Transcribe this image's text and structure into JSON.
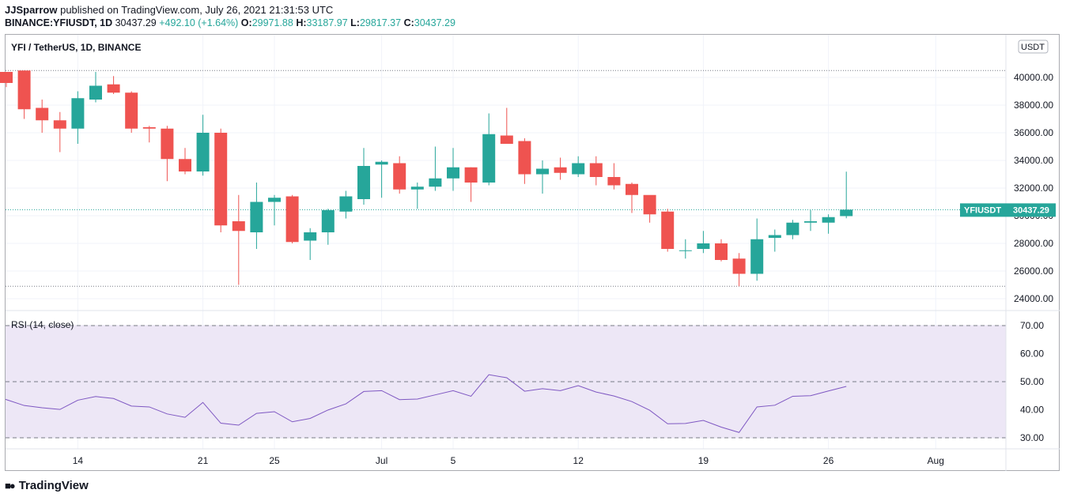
{
  "header": {
    "author": "JJSparrow",
    "published": " published on TradingView.com, July 26, 2021 21:31:53 UTC",
    "symbol": "BINANCE:YFIUSDT, 1D",
    "last": "30437.29",
    "change": "+492.10 (+1.64%)",
    "o_label": "O:",
    "o_val": "29971.88",
    "h_label": "H:",
    "h_val": "33187.97",
    "l_label": "L:",
    "l_val": "29817.37",
    "c_label": "C:",
    "c_val": "30437.29"
  },
  "chart_title": "YFI / TetherUS, 1D, BINANCE",
  "currency_badge": "USDT",
  "price_badge": {
    "label": "YFIUSDT",
    "value": "30437.29"
  },
  "rsi_label": "RSI (14, close)",
  "logo_text": "TradingView",
  "colors": {
    "up": "#26a69a",
    "down": "#ef5350",
    "rsi_line": "#7e57c2",
    "rsi_band": "#ede7f6"
  },
  "chart_data": [
    {
      "type": "candlestick",
      "title": "YFI / TetherUS, 1D, BINANCE",
      "y_ticks": [
        "24000.00",
        "26000.00",
        "28000.00",
        "30000.00",
        "32000.00",
        "34000.00",
        "36000.00",
        "38000.00",
        "40000.00"
      ],
      "x_ticks": [
        "14",
        "21",
        "25",
        "Jul",
        "5",
        "12",
        "19",
        "26",
        "Aug"
      ],
      "ohlc": [
        [
          40400,
          40400,
          39300,
          39600
        ],
        [
          40500,
          40500,
          37000,
          37700
        ],
        [
          37800,
          38400,
          36000,
          36900
        ],
        [
          36900,
          37500,
          34600,
          36300
        ],
        [
          36300,
          39000,
          35200,
          38500
        ],
        [
          38400,
          40400,
          38200,
          39400
        ],
        [
          39500,
          40100,
          38800,
          38900
        ],
        [
          38900,
          39000,
          36000,
          36300
        ],
        [
          36400,
          36500,
          35300,
          36300
        ],
        [
          36300,
          36500,
          32500,
          34100
        ],
        [
          34100,
          34900,
          33000,
          33200
        ],
        [
          33200,
          37300,
          32900,
          36000
        ],
        [
          36000,
          36300,
          28800,
          29300
        ],
        [
          29600,
          31500,
          25000,
          28900
        ],
        [
          28800,
          32400,
          27600,
          31000
        ],
        [
          31000,
          31500,
          29300,
          31300
        ],
        [
          31400,
          31500,
          28000,
          28100
        ],
        [
          28200,
          29100,
          26800,
          28800
        ],
        [
          28800,
          30500,
          27900,
          30400
        ],
        [
          30300,
          31800,
          29800,
          31400
        ],
        [
          31200,
          34900,
          30800,
          33600
        ],
        [
          33700,
          34000,
          31300,
          33900
        ],
        [
          33800,
          34300,
          31600,
          31900
        ],
        [
          31900,
          32400,
          30500,
          32100
        ],
        [
          32100,
          35000,
          31800,
          32700
        ],
        [
          32700,
          34900,
          31800,
          33500
        ],
        [
          33500,
          33500,
          31000,
          32400
        ],
        [
          32400,
          37400,
          32200,
          35900
        ],
        [
          35800,
          37800,
          35300,
          35200
        ],
        [
          35400,
          35600,
          32300,
          33000
        ],
        [
          33000,
          34000,
          31600,
          33400
        ],
        [
          33500,
          34200,
          32600,
          33100
        ],
        [
          33000,
          34300,
          32800,
          33800
        ],
        [
          33800,
          34300,
          32200,
          32800
        ],
        [
          32800,
          33800,
          31900,
          32200
        ],
        [
          32300,
          32400,
          30200,
          31500
        ],
        [
          31500,
          31400,
          29500,
          30100
        ],
        [
          30300,
          30500,
          27400,
          27600
        ],
        [
          27500,
          28300,
          26900,
          27500
        ],
        [
          27600,
          28900,
          27300,
          28000
        ],
        [
          28000,
          28300,
          26700,
          26800
        ],
        [
          26900,
          27300,
          24900,
          25800
        ],
        [
          25800,
          29800,
          25300,
          28300
        ],
        [
          28400,
          29000,
          27400,
          28600
        ],
        [
          28600,
          29700,
          28300,
          29500
        ],
        [
          29500,
          30400,
          28900,
          29600
        ],
        [
          29500,
          30100,
          28700,
          29900
        ],
        [
          29972,
          33188,
          29817,
          30437
        ]
      ],
      "last_price": 30437.29
    },
    {
      "type": "line",
      "title": "RSI (14, close)",
      "y_ticks": [
        "30.00",
        "40.00",
        "50.00",
        "60.00",
        "70.00"
      ],
      "levels": [
        30,
        50,
        70
      ],
      "series": [
        {
          "values": [
            43.7,
            41.5,
            40.7,
            40.1,
            43.4,
            44.7,
            44.0,
            41.3,
            41.0,
            38.5,
            37.3,
            42.6,
            35.2,
            34.5,
            38.7,
            39.3,
            35.7,
            36.9,
            39.9,
            42.1,
            46.5,
            46.8,
            43.6,
            43.8,
            45.3,
            46.8,
            44.8,
            52.5,
            51.4,
            46.6,
            47.5,
            46.8,
            48.6,
            46.3,
            44.9,
            42.9,
            39.8,
            35.0,
            35.1,
            36.2,
            33.8,
            31.9,
            41.0,
            41.6,
            44.8,
            45.0,
            46.7,
            48.3
          ]
        }
      ]
    }
  ]
}
